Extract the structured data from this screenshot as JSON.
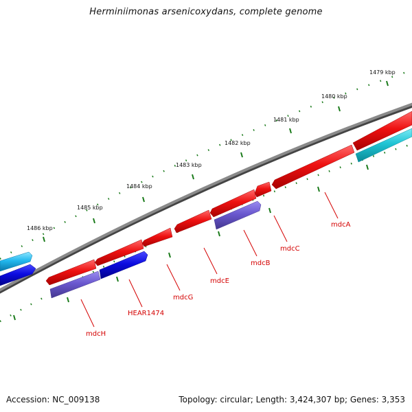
{
  "title": "Herminiimonas arsenicoxydans, complete genome",
  "footer": {
    "accession": "Accession: NC_009138",
    "summary": "Topology: circular; Length: 3,424,307 bp; Genes: 3,353"
  },
  "kbp_labels": [
    "1479 kbp",
    "1480 kbp",
    "1481 kbp",
    "1482 kbp",
    "1483 kbp",
    "1484 kbp",
    "1485 kbp",
    "1486 kbp"
  ],
  "gene_labels": [
    "mdcA",
    "mdcC",
    "mdcB",
    "mdcE",
    "mdcG",
    "HEAR1474",
    "mdcH"
  ],
  "colors": {
    "backbone": "#7a7a7a",
    "tick": "#1a7a1a",
    "cds_red": "#e81010",
    "cds_blue": "#1010d8",
    "cds_purple": "#6a5acd",
    "cds_cyan": "#22c8d8",
    "label": "#d40000"
  }
}
